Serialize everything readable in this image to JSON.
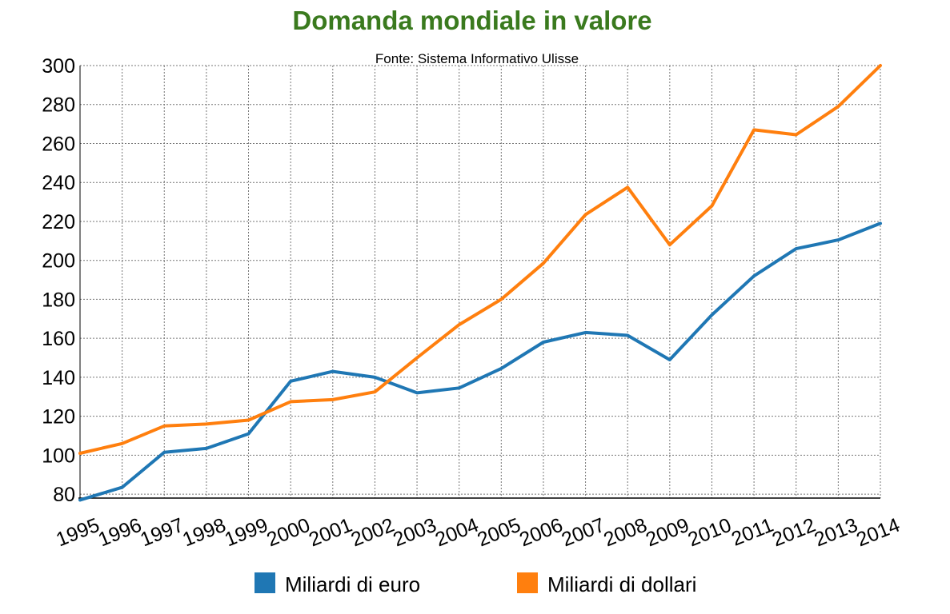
{
  "chart_data": {
    "type": "line",
    "title": "Domanda mondiale in valore",
    "subtitle": "Fonte: Sistema Informativo Ulisse",
    "title_color": "#3a7a1e",
    "ylim": [
      78,
      300
    ],
    "yticks": [
      80,
      100,
      120,
      140,
      160,
      180,
      200,
      220,
      240,
      260,
      280,
      300
    ],
    "grid": true,
    "legend_position": "bottom",
    "x": [
      "1995",
      "1996",
      "1997",
      "1998",
      "1999",
      "2000",
      "2001",
      "2002",
      "2003",
      "2004",
      "2005",
      "2006",
      "2007",
      "2008",
      "2009",
      "2010",
      "2011",
      "2012",
      "2013",
      "2014"
    ],
    "series": [
      {
        "name": "Miliardi di euro",
        "color": "#1f77b4",
        "values": [
          77,
          83.5,
          101.5,
          103.5,
          111,
          138,
          143,
          140,
          132,
          134.5,
          144.5,
          158,
          163,
          161.5,
          149,
          172,
          192,
          206,
          210.5,
          219
        ]
      },
      {
        "name": "Miliardi di dollari",
        "color": "#ff7f0e",
        "values": [
          101,
          106,
          115,
          116,
          118,
          127.5,
          128.5,
          132.5,
          150,
          167,
          180,
          198.5,
          223.5,
          237.5,
          208,
          228,
          267,
          264.5,
          279,
          300
        ]
      }
    ]
  }
}
